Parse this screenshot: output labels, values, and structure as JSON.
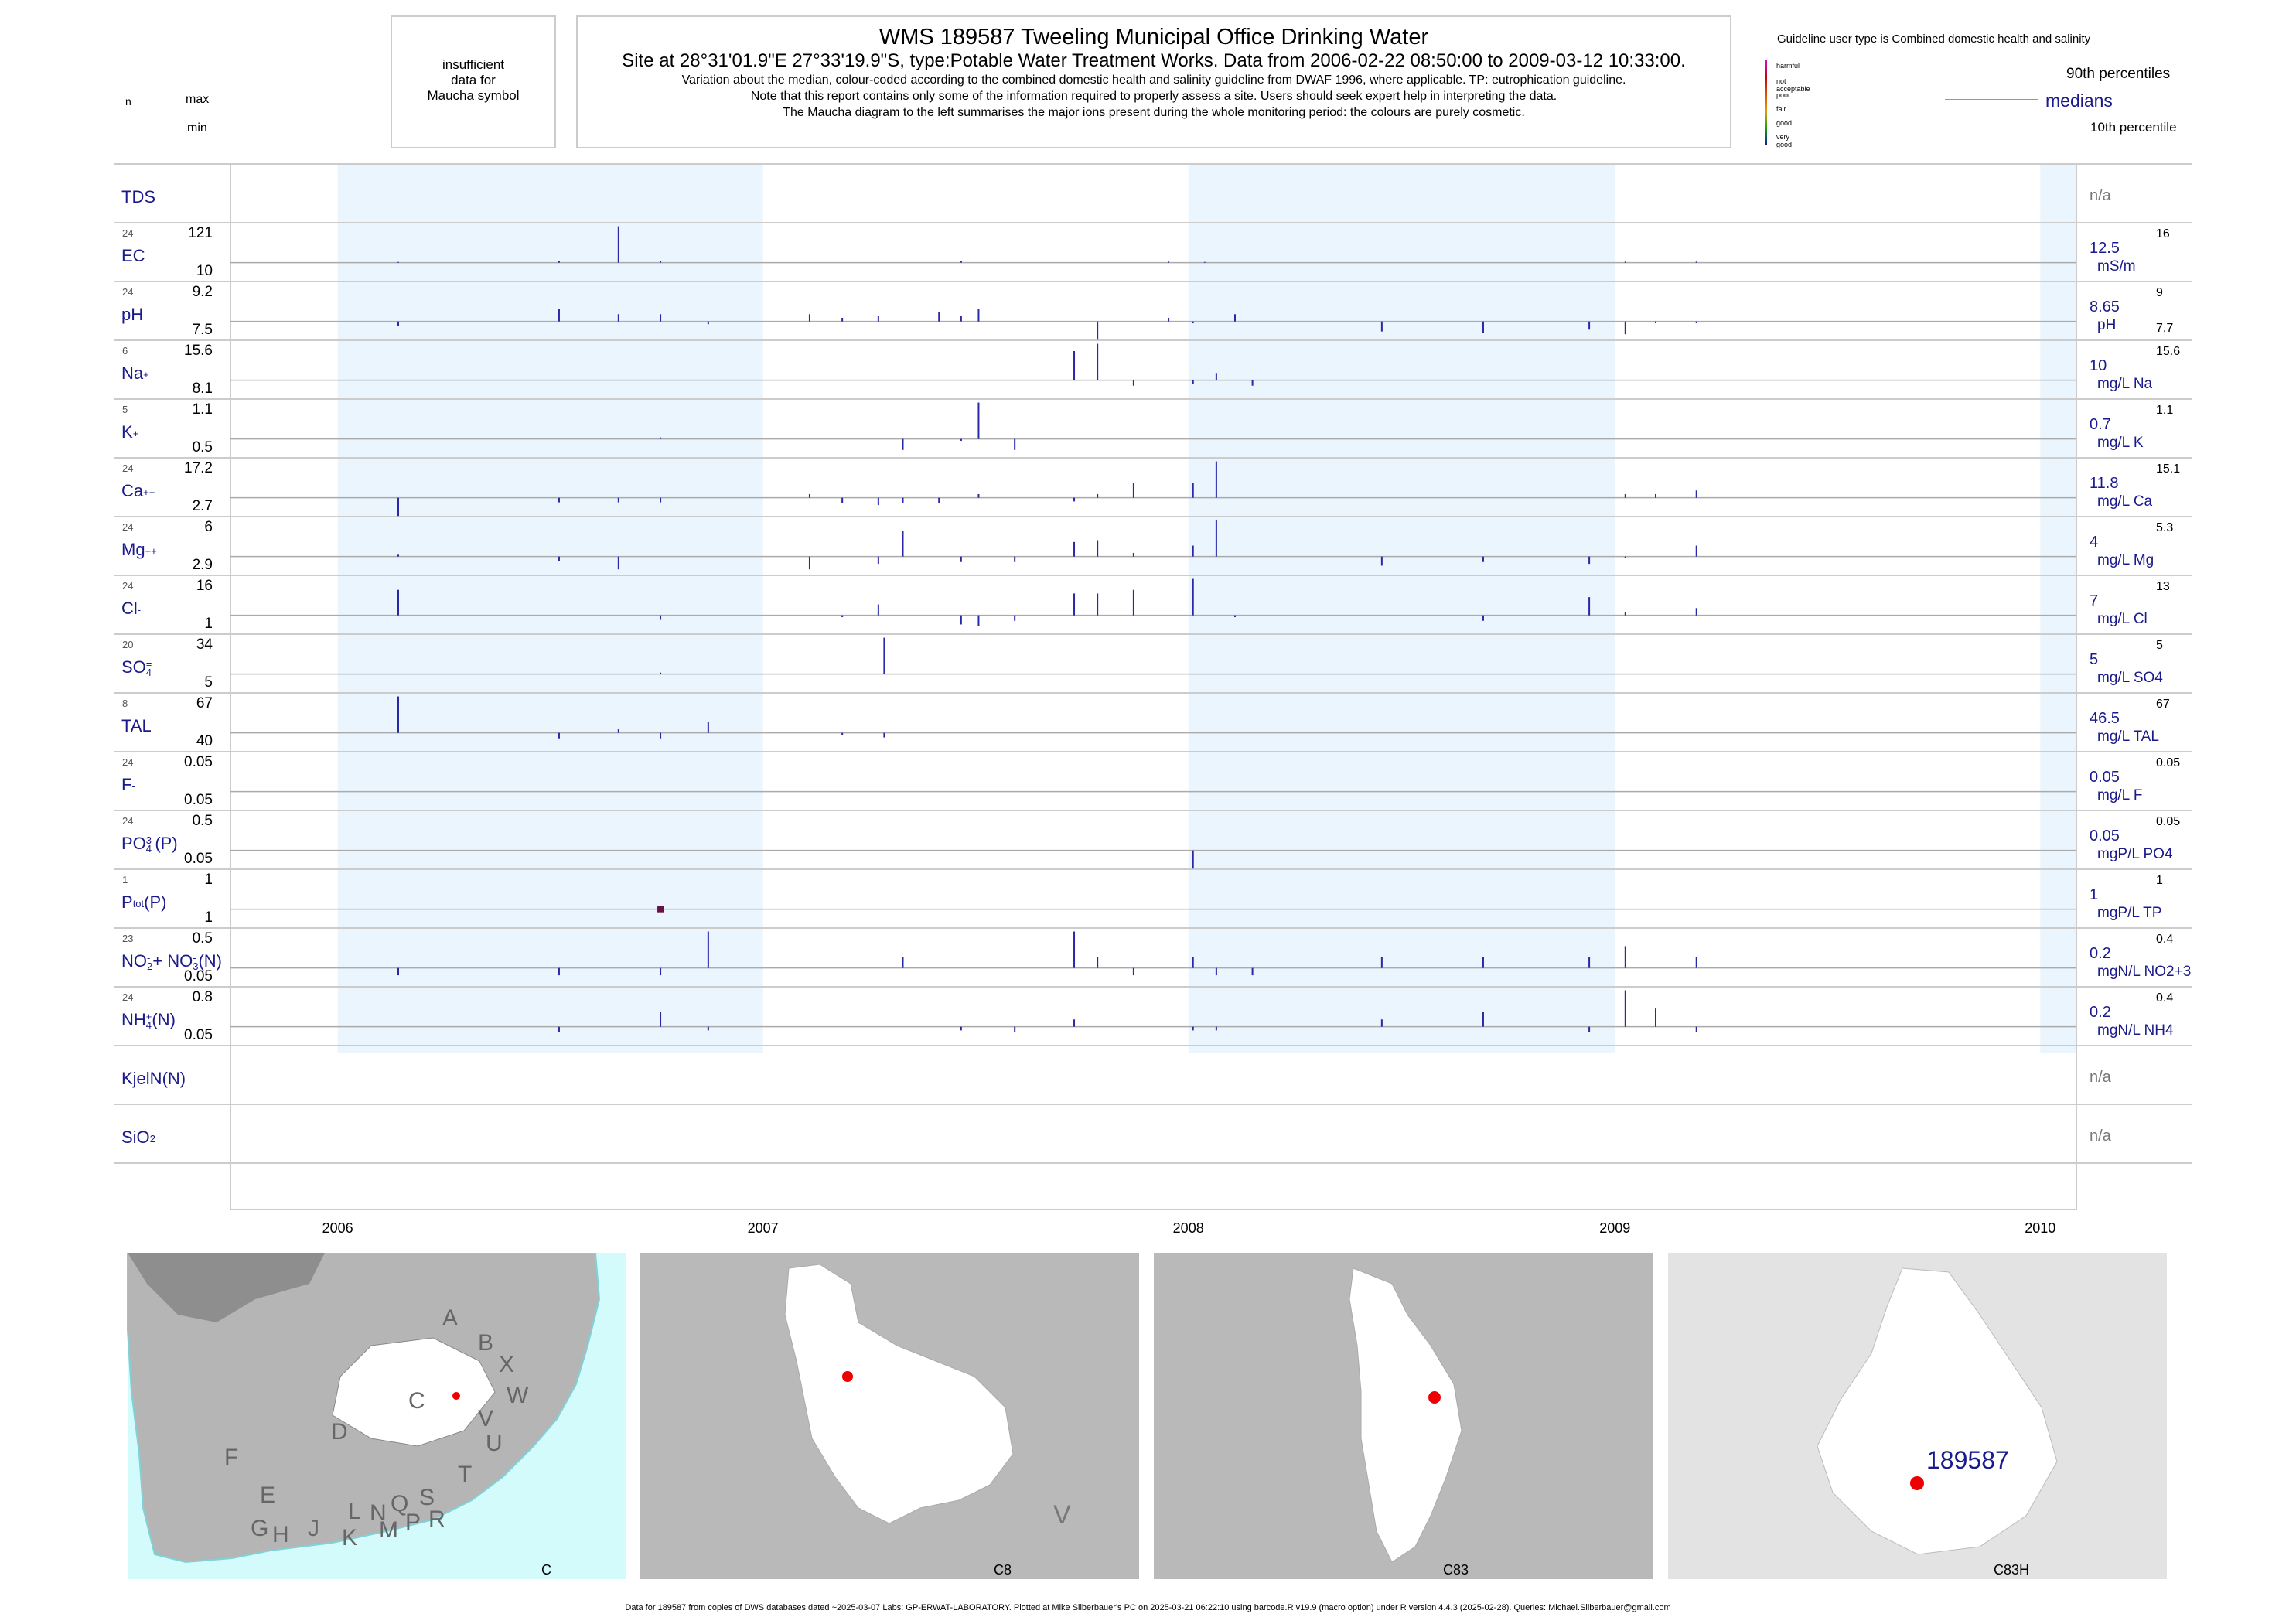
{
  "header": {
    "title": "WMS 189587  Tweeling Municipal Office Drinking Water",
    "subtitle": "Site at 28°31'01.9\"E 27°33'19.9\"S, type:Potable Water Treatment Works.  Data from 2006-02-22 08:50:00 to 2009-03-12 10:33:00.",
    "line1": "Variation about the median,  colour-coded according to the combined domestic health and salinity guideline from DWAF 1996, where applicable. TP: eutrophication guideline.",
    "line2": "Note that this report contains only some of the information required to properly assess a site. Users should seek expert help in interpreting the data.",
    "line3": "The Maucha diagram to the left summarises the major ions present during the whole monitoring period: the colours are purely cosmetic."
  },
  "maucha": {
    "l1": "insufficient",
    "l2": "data for",
    "l3": "Maucha symbol"
  },
  "key": {
    "n": "n",
    "max": "max",
    "min": "min"
  },
  "legend": {
    "guideline": "Guideline user type is Combined domestic health and salinity",
    "classes": [
      "harmful",
      "not acceptable",
      "poor",
      "fair",
      "good",
      "very good"
    ],
    "class_colors": [
      "#d10ec3",
      "#c0001a",
      "#e05000",
      "#e0a000",
      "#10a010",
      "#0a1aa0"
    ],
    "p90": "90th percentiles",
    "medians": "medians",
    "p10": "10th percentile"
  },
  "footer": "Data for 189587 from copies of DWS databases dated ~2025-03-07 Labs: GP-ERWAT-LABORATORY. Plotted at Mike Silberbauer's PC on 2025-03-21 06:22:10 using barcode.R v19.9 (macro option) under R version 4.4.3 (2025-02-28). Queries: Michael.Silberbauer@gmail.com",
  "maps": {
    "m1": {
      "label": "C",
      "regions": [
        "A",
        "B",
        "X",
        "W",
        "C",
        "V",
        "U",
        "T",
        "D",
        "F",
        "E",
        "G",
        "H",
        "J",
        "K",
        "L",
        "N",
        "Q",
        "M",
        "P",
        "S",
        "R"
      ]
    },
    "m2": {
      "label": "C8",
      "region": "V"
    },
    "m3": {
      "label": "C83"
    },
    "m4": {
      "label": "C83H",
      "site": "189587"
    }
  },
  "chart_data": {
    "type": "bar",
    "x_range": [
      "2005-10-01",
      "2010-02-01"
    ],
    "year_ticks": [
      "2006",
      "2007",
      "2008",
      "2009",
      "2010"
    ],
    "shaded_years": [
      "2006",
      "2008",
      "2010"
    ],
    "series": [
      {
        "name": "TDS",
        "label_base": "TDS",
        "empty": true,
        "right": "n/a"
      },
      {
        "name": "EC",
        "label_base": "EC",
        "n": "24",
        "max": "121",
        "min": "10",
        "rmedian": "12.5",
        "runit": "mS/m",
        "rp90": "16",
        "rp10": "",
        "events": [
          [
            "2006-02-22",
            0.02
          ],
          [
            "2006-07-10",
            0
          ],
          [
            "2006-08-30",
            1.0
          ],
          [
            "2006-10-05",
            0
          ],
          [
            "2007-06-20",
            0
          ],
          [
            "2007-12-15",
            0.03
          ],
          [
            "2008-01-15",
            0.02
          ],
          [
            "2009-01-10",
            0.03
          ],
          [
            "2009-03-12",
            0.03
          ]
        ]
      },
      {
        "name": "pH",
        "label_base": "pH",
        "n": "24",
        "max": "9.2",
        "min": "7.5",
        "rmedian": "8.65",
        "runit": "pH",
        "rp90": "9",
        "rp10": "7.7",
        "events": [
          [
            "2006-02-22",
            -0.25
          ],
          [
            "2006-07-10",
            0.35
          ],
          [
            "2006-08-30",
            0.2
          ],
          [
            "2006-10-05",
            0.2
          ],
          [
            "2006-11-15",
            -0.15
          ],
          [
            "2007-02-10",
            0.2
          ],
          [
            "2007-03-10",
            0.1
          ],
          [
            "2007-04-10",
            0.15
          ],
          [
            "2007-06-01",
            0.25
          ],
          [
            "2007-06-20",
            0.15
          ],
          [
            "2007-07-05",
            0.35
          ],
          [
            "2007-10-15",
            -1.0
          ],
          [
            "2007-12-15",
            0.1
          ],
          [
            "2008-01-05",
            -0.1
          ],
          [
            "2008-02-10",
            0.2
          ],
          [
            "2008-06-15",
            -0.55
          ],
          [
            "2008-09-10",
            -0.65
          ],
          [
            "2008-12-10",
            -0.45
          ],
          [
            "2009-01-10",
            -0.7
          ],
          [
            "2009-02-05",
            -0.1
          ],
          [
            "2009-03-12",
            -0.1
          ]
        ]
      },
      {
        "name": "Na",
        "label_base": "Na",
        "sup": "+",
        "n": "6",
        "max": "15.6",
        "min": "8.1",
        "rmedian": "10",
        "runit": "mg/L Na",
        "rp90": "15.6",
        "rp10": "",
        "events": [
          [
            "2007-09-25",
            0.8
          ],
          [
            "2007-10-15",
            1.0
          ],
          [
            "2007-11-15",
            -0.3
          ],
          [
            "2008-01-05",
            -0.2
          ],
          [
            "2008-01-25",
            0.2
          ],
          [
            "2008-02-25",
            -0.3
          ]
        ]
      },
      {
        "name": "K",
        "label_base": "K",
        "sup": "+",
        "n": "5",
        "max": "1.1",
        "min": "0.5",
        "rmedian": "0.7",
        "runit": "mg/L K",
        "rp90": "1.1",
        "rp10": "",
        "events": [
          [
            "2007-05-01",
            -0.6
          ],
          [
            "2007-06-20",
            -0.1
          ],
          [
            "2007-07-05",
            1.0
          ],
          [
            "2007-08-05",
            -0.6
          ],
          [
            "2006-10-05",
            0
          ]
        ]
      },
      {
        "name": "Ca",
        "label_base": "Ca",
        "sup": "++",
        "n": "24",
        "max": "17.2",
        "min": "2.7",
        "rmedian": "11.8",
        "runit": "mg/L Ca",
        "rp90": "15.1",
        "rp10": "",
        "events": [
          [
            "2006-02-22",
            -1.0
          ],
          [
            "2006-07-10",
            -0.25
          ],
          [
            "2006-08-30",
            -0.25
          ],
          [
            "2006-10-05",
            -0.25
          ],
          [
            "2007-02-10",
            0.1
          ],
          [
            "2007-03-10",
            -0.3
          ],
          [
            "2007-04-10",
            -0.4
          ],
          [
            "2007-05-01",
            -0.3
          ],
          [
            "2007-06-01",
            -0.3
          ],
          [
            "2007-07-05",
            0.1
          ],
          [
            "2007-09-25",
            -0.2
          ],
          [
            "2007-10-15",
            0.1
          ],
          [
            "2007-11-15",
            0.4
          ],
          [
            "2008-01-05",
            0.4
          ],
          [
            "2008-01-25",
            1.0
          ],
          [
            "2009-01-10",
            0.1
          ],
          [
            "2009-02-05",
            0.1
          ],
          [
            "2009-03-12",
            0.2
          ]
        ]
      },
      {
        "name": "Mg",
        "label_base": "Mg",
        "sup": "++",
        "n": "24",
        "max": "6",
        "min": "2.9",
        "rmedian": "4",
        "runit": "mg/L Mg",
        "rp90": "5.3",
        "rp10": "",
        "events": [
          [
            "2006-02-22",
            0.05
          ],
          [
            "2006-07-10",
            -0.25
          ],
          [
            "2006-08-30",
            -0.7
          ],
          [
            "2007-02-10",
            -0.7
          ],
          [
            "2007-04-10",
            -0.4
          ],
          [
            "2007-05-01",
            0.7
          ],
          [
            "2007-06-20",
            -0.3
          ],
          [
            "2007-08-05",
            -0.3
          ],
          [
            "2007-09-25",
            0.4
          ],
          [
            "2007-10-15",
            0.45
          ],
          [
            "2007-11-15",
            0.1
          ],
          [
            "2008-01-05",
            0.3
          ],
          [
            "2008-01-25",
            1.0
          ],
          [
            "2008-06-15",
            -0.5
          ],
          [
            "2008-09-10",
            -0.3
          ],
          [
            "2008-12-10",
            -0.4
          ],
          [
            "2009-01-10",
            -0.1
          ],
          [
            "2009-03-12",
            0.3
          ]
        ]
      },
      {
        "name": "Cl",
        "label_base": "Cl",
        "sup": "-",
        "n": "24",
        "max": "16",
        "min": "1",
        "rmedian": "7",
        "runit": "mg/L Cl",
        "rp90": "13",
        "rp10": "",
        "events": [
          [
            "2006-02-22",
            0.7
          ],
          [
            "2006-10-05",
            -0.25
          ],
          [
            "2007-03-10",
            -0.1
          ],
          [
            "2007-04-10",
            0.3
          ],
          [
            "2007-06-20",
            -0.5
          ],
          [
            "2007-07-05",
            -0.6
          ],
          [
            "2007-08-05",
            -0.3
          ],
          [
            "2007-09-25",
            0.6
          ],
          [
            "2007-10-15",
            0.6
          ],
          [
            "2007-11-15",
            0.7
          ],
          [
            "2008-01-05",
            1.0
          ],
          [
            "2008-02-10",
            -0.1
          ],
          [
            "2008-09-10",
            -0.3
          ],
          [
            "2008-12-10",
            0.5
          ],
          [
            "2009-01-10",
            0.1
          ],
          [
            "2009-03-12",
            0.2
          ]
        ]
      },
      {
        "name": "SO4",
        "label_base": "SO",
        "sub": "4",
        "sup": "=",
        "n": "20",
        "max": "34",
        "min": "5",
        "rmedian": "5",
        "runit": "mg/L SO4",
        "rp90": "5",
        "rp10": "",
        "events": [
          [
            "2007-04-15",
            1.0
          ],
          [
            "2006-10-05",
            0
          ]
        ]
      },
      {
        "name": "TAL",
        "label_base": "TAL",
        "n": "8",
        "max": "67",
        "min": "40",
        "rmedian": "46.5",
        "runit": "mg/L TAL",
        "rp90": "67",
        "rp10": "",
        "events": [
          [
            "2006-02-22",
            1.0
          ],
          [
            "2006-07-10",
            -0.3
          ],
          [
            "2006-08-30",
            0.1
          ],
          [
            "2006-10-05",
            -0.3
          ],
          [
            "2006-11-15",
            0.3
          ],
          [
            "2007-03-10",
            -0.1
          ],
          [
            "2007-04-15",
            -0.25
          ]
        ]
      },
      {
        "name": "F",
        "label_base": "F",
        "sup": "-",
        "n": "24",
        "max": "0.05",
        "min": "0.05",
        "rmedian": "0.05",
        "runit": "mg/L F",
        "rp90": "0.05",
        "rp10": "",
        "events": []
      },
      {
        "name": "PO4",
        "label_base": "PO",
        "sub": "4",
        "sup": "3-",
        "tail": "(P)",
        "n": "24",
        "max": "0.5",
        "min": "0.05",
        "rmedian": "0.05",
        "runit": "mgP/L PO4",
        "rp90": "0.05",
        "rp10": "",
        "events": [
          [
            "2008-01-05",
            -1.0
          ]
        ]
      },
      {
        "name": "Ptot",
        "label_base": "P",
        "sub": "tot",
        "tail": "(P)",
        "n": "1",
        "max": "1",
        "min": "1",
        "rmedian": "1",
        "runit": "mgP/L TP",
        "rp90": "1",
        "rp10": "",
        "events": [],
        "dot": "2006-10-05"
      },
      {
        "name": "NO2+NO3",
        "label_base": "NO",
        "sub": "2",
        "sup": "-",
        "mid": "+ NO",
        "sub2": "3",
        "sup2": "-",
        "tail": "(N)",
        "n": "23",
        "max": "0.5",
        "min": "0.05",
        "rmedian": "0.2",
        "runit": "mgN/L NO2+3",
        "rp90": "0.4",
        "rp10": "",
        "events": [
          [
            "2006-02-22",
            -0.4
          ],
          [
            "2006-07-10",
            -0.4
          ],
          [
            "2006-10-05",
            -0.4
          ],
          [
            "2006-11-15",
            1.0
          ],
          [
            "2007-05-01",
            0.3
          ],
          [
            "2007-09-25",
            1.0
          ],
          [
            "2007-10-15",
            0.3
          ],
          [
            "2007-11-15",
            -0.4
          ],
          [
            "2008-01-05",
            0.3
          ],
          [
            "2008-01-25",
            -0.4
          ],
          [
            "2008-02-25",
            -0.4
          ],
          [
            "2008-06-15",
            0.3
          ],
          [
            "2008-09-10",
            0.3
          ],
          [
            "2008-12-10",
            0.3
          ],
          [
            "2009-01-10",
            0.6
          ],
          [
            "2009-03-12",
            0.3
          ]
        ]
      },
      {
        "name": "NH4",
        "label_base": "NH",
        "sub": "4",
        "sup": "+",
        "tail": "(N)",
        "n": "24",
        "max": "0.8",
        "min": "0.05",
        "rmedian": "0.2",
        "runit": "mgN/L NH4",
        "rp90": "0.4",
        "rp10": "",
        "events": [
          [
            "2006-07-10",
            -0.3
          ],
          [
            "2006-10-05",
            0.4
          ],
          [
            "2006-11-15",
            -0.2
          ],
          [
            "2007-06-20",
            -0.2
          ],
          [
            "2007-08-05",
            -0.3
          ],
          [
            "2007-09-25",
            0.2
          ],
          [
            "2008-01-05",
            -0.2
          ],
          [
            "2008-01-25",
            -0.2
          ],
          [
            "2008-06-15",
            0.2
          ],
          [
            "2008-09-10",
            0.4
          ],
          [
            "2008-12-10",
            -0.3
          ],
          [
            "2009-01-10",
            1.0
          ],
          [
            "2009-02-05",
            0.5
          ],
          [
            "2009-03-12",
            -0.3
          ]
        ]
      },
      {
        "name": "KjelN",
        "label_base": "KjelN(N)",
        "empty": true,
        "right": "n/a"
      },
      {
        "name": "SiO2",
        "label_base": "SiO",
        "sub": "2",
        "empty": true,
        "right": "n/a"
      }
    ]
  }
}
